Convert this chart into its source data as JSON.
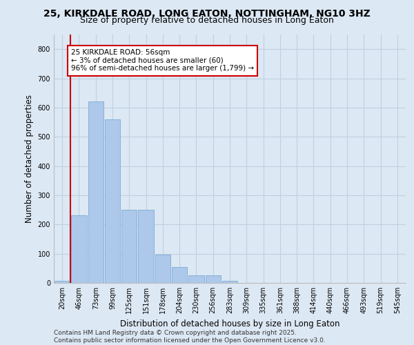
{
  "title_line1": "25, KIRKDALE ROAD, LONG EATON, NOTTINGHAM, NG10 3HZ",
  "title_line2": "Size of property relative to detached houses in Long Eaton",
  "xlabel": "Distribution of detached houses by size in Long Eaton",
  "ylabel": "Number of detached properties",
  "categories": [
    "20sqm",
    "46sqm",
    "73sqm",
    "99sqm",
    "125sqm",
    "151sqm",
    "178sqm",
    "204sqm",
    "230sqm",
    "256sqm",
    "283sqm",
    "309sqm",
    "335sqm",
    "361sqm",
    "388sqm",
    "414sqm",
    "440sqm",
    "466sqm",
    "493sqm",
    "519sqm",
    "545sqm"
  ],
  "values": [
    8,
    232,
    620,
    560,
    250,
    250,
    97,
    55,
    25,
    25,
    7,
    0,
    0,
    0,
    0,
    0,
    0,
    0,
    0,
    0,
    0
  ],
  "bar_color": "#adc8ea",
  "bar_edge_color": "#7aadd4",
  "property_line_x": 0.5,
  "annotation_text": "25 KIRKDALE ROAD: 56sqm\n← 3% of detached houses are smaller (60)\n96% of semi-detached houses are larger (1,799) →",
  "annotation_box_facecolor": "#ffffff",
  "annotation_box_edgecolor": "#cc0000",
  "vline_color": "#cc0000",
  "ylim": [
    0,
    850
  ],
  "yticks": [
    0,
    100,
    200,
    300,
    400,
    500,
    600,
    700,
    800
  ],
  "grid_color": "#c0d0e0",
  "background_color": "#dce8f4",
  "footer_line1": "Contains HM Land Registry data © Crown copyright and database right 2025.",
  "footer_line2": "Contains public sector information licensed under the Open Government Licence v3.0.",
  "title_fontsize": 10,
  "subtitle_fontsize": 9,
  "axis_label_fontsize": 8.5,
  "tick_fontsize": 7,
  "annotation_fontsize": 7.5,
  "footer_fontsize": 6.5
}
